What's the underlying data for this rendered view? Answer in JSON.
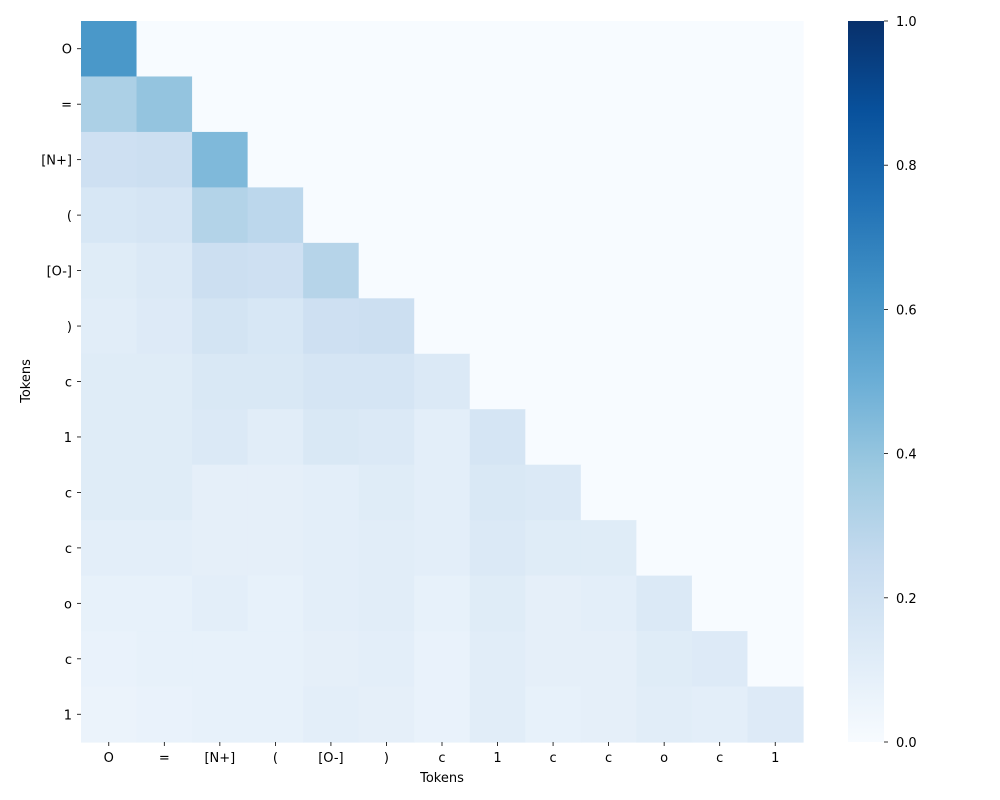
{
  "chart_data": {
    "type": "heatmap",
    "title": "",
    "xlabel": "Tokens",
    "ylabel": "Tokens",
    "x_labels": [
      "O",
      "=",
      "[N+]",
      "(",
      "[O-]",
      ")",
      "c",
      "1",
      "c",
      "c",
      "o",
      "c",
      "1"
    ],
    "y_labels": [
      "O",
      "=",
      "[N+]",
      "(",
      "[O-]",
      ")",
      "c",
      "1",
      "c",
      "c",
      "o",
      "c",
      "1"
    ],
    "values": [
      [
        0.6,
        0.0,
        0.0,
        0.0,
        0.0,
        0.0,
        0.0,
        0.0,
        0.0,
        0.0,
        0.0,
        0.0,
        0.0
      ],
      [
        0.33,
        0.4,
        0.0,
        0.0,
        0.0,
        0.0,
        0.0,
        0.0,
        0.0,
        0.0,
        0.0,
        0.0,
        0.0
      ],
      [
        0.21,
        0.22,
        0.45,
        0.0,
        0.0,
        0.0,
        0.0,
        0.0,
        0.0,
        0.0,
        0.0,
        0.0,
        0.0
      ],
      [
        0.16,
        0.17,
        0.31,
        0.28,
        0.0,
        0.0,
        0.0,
        0.0,
        0.0,
        0.0,
        0.0,
        0.0,
        0.0
      ],
      [
        0.12,
        0.14,
        0.22,
        0.21,
        0.3,
        0.0,
        0.0,
        0.0,
        0.0,
        0.0,
        0.0,
        0.0,
        0.0
      ],
      [
        0.11,
        0.13,
        0.18,
        0.16,
        0.21,
        0.22,
        0.0,
        0.0,
        0.0,
        0.0,
        0.0,
        0.0,
        0.0
      ],
      [
        0.12,
        0.12,
        0.15,
        0.15,
        0.17,
        0.17,
        0.14,
        0.0,
        0.0,
        0.0,
        0.0,
        0.0,
        0.0
      ],
      [
        0.12,
        0.12,
        0.14,
        0.11,
        0.15,
        0.14,
        0.1,
        0.17,
        0.0,
        0.0,
        0.0,
        0.0,
        0.0
      ],
      [
        0.12,
        0.12,
        0.09,
        0.09,
        0.1,
        0.12,
        0.1,
        0.15,
        0.14,
        0.0,
        0.0,
        0.0,
        0.0
      ],
      [
        0.1,
        0.1,
        0.09,
        0.09,
        0.1,
        0.11,
        0.1,
        0.14,
        0.12,
        0.12,
        0.0,
        0.0,
        0.0
      ],
      [
        0.08,
        0.08,
        0.1,
        0.08,
        0.1,
        0.11,
        0.08,
        0.12,
        0.09,
        0.1,
        0.14,
        0.0,
        0.0
      ],
      [
        0.07,
        0.08,
        0.08,
        0.08,
        0.09,
        0.1,
        0.07,
        0.11,
        0.09,
        0.09,
        0.12,
        0.13,
        0.0
      ],
      [
        0.06,
        0.07,
        0.08,
        0.08,
        0.1,
        0.09,
        0.07,
        0.11,
        0.08,
        0.09,
        0.11,
        0.1,
        0.13
      ]
    ],
    "vmin": 0,
    "vmax": 1,
    "colormap": "Blues",
    "colorbar": {
      "ticks": [
        0.0,
        0.2,
        0.4,
        0.6,
        0.8,
        1.0
      ],
      "tick_labels": [
        "0.0",
        "0.2",
        "0.4",
        "0.6",
        "0.8",
        "1.0"
      ]
    }
  }
}
